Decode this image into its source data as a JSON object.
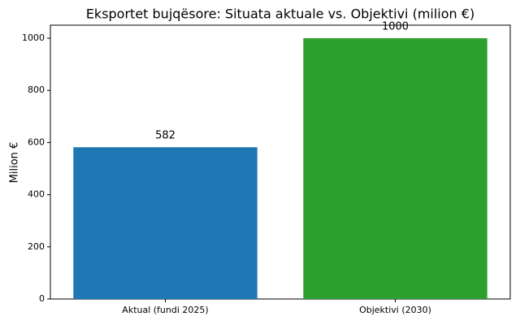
{
  "chart_data": {
    "type": "bar",
    "title": "Eksportet bujqësore: Situata aktuale vs. Objektivi (milion €)",
    "y_label": "Milion €",
    "categories": [
      "Aktual (fundi 2025)",
      "Objektivi (2030)"
    ],
    "values": [
      582,
      1000
    ],
    "colors": [
      "#1f77b4",
      "#2ca02c"
    ],
    "ylim": [
      0,
      1050
    ],
    "yticks": [
      0,
      200,
      400,
      600,
      800,
      1000
    ],
    "grid": false
  }
}
